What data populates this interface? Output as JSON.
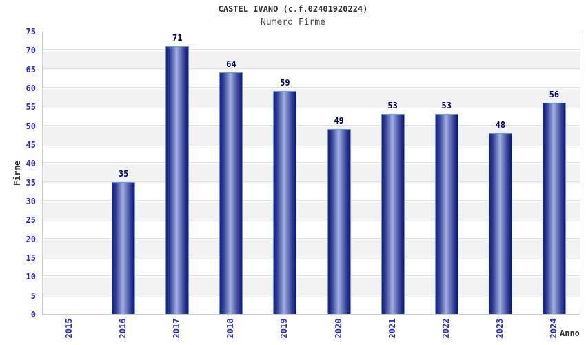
{
  "page": {
    "background": "#ffffff"
  },
  "chart_data": {
    "type": "bar",
    "title": "CASTEL IVANO (c.f.02401920224)",
    "subtitle": "Numero Firme",
    "xlabel": "Anno",
    "ylabel": "Firme",
    "categories": [
      "2015",
      "2016",
      "2017",
      "2018",
      "2019",
      "2020",
      "2021",
      "2022",
      "2023",
      "2024"
    ],
    "values": [
      0,
      35,
      71,
      64,
      59,
      49,
      53,
      53,
      48,
      56
    ],
    "ylim": [
      0,
      75
    ],
    "ytick_step": 5,
    "grid": "horizontal-stripes",
    "legend": "none",
    "colors": {
      "bar_border": "#5b9bf5",
      "bar_dark": "#1d1f78",
      "bar_light": "#a6b0df",
      "tick_label": "#2b2bd5",
      "value_label": "#000066",
      "title": "#333333",
      "subtitle": "#4d4d4d",
      "axis_label": "#333333",
      "stripe": "#f2f2f2",
      "gridline": "#e2e2e2",
      "plot_border": "#cccccc"
    }
  }
}
